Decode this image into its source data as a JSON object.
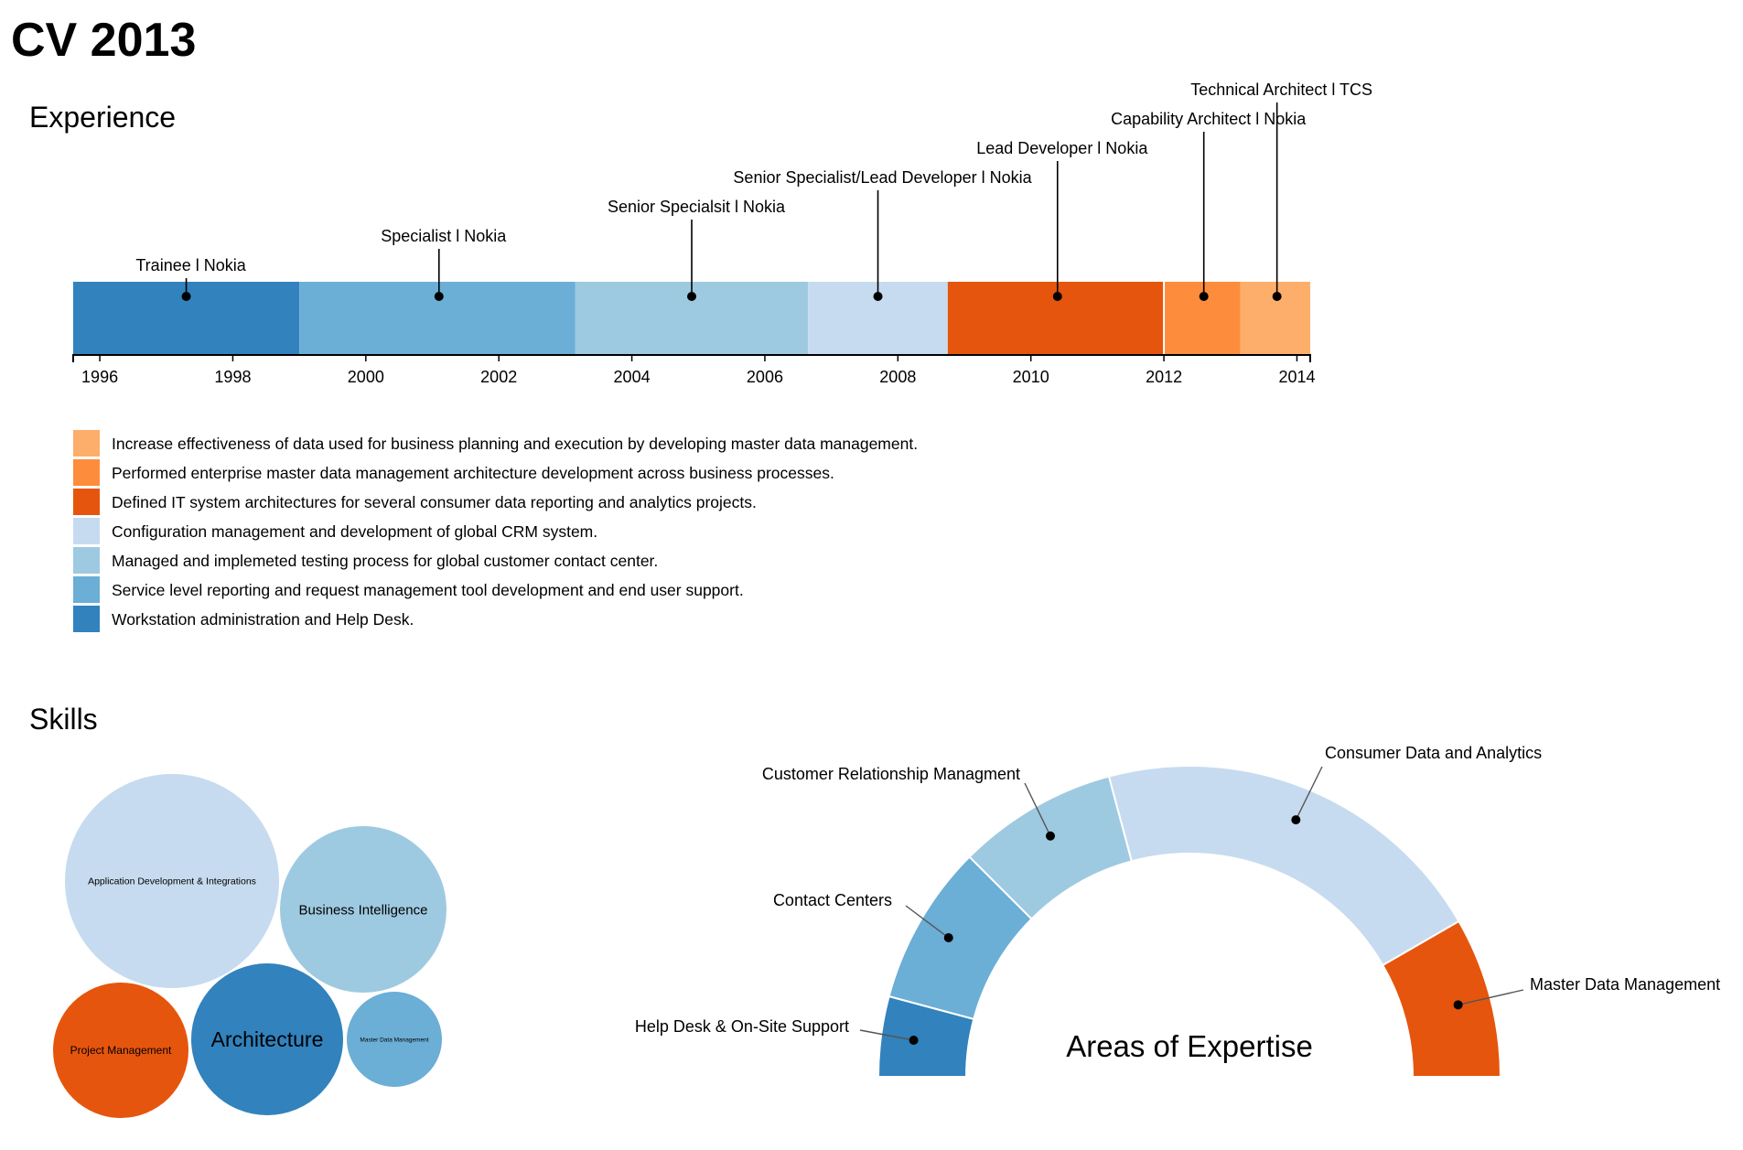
{
  "page": {
    "title": "CV 2013"
  },
  "sections": {
    "experience": "Experience",
    "skills": "Skills"
  },
  "chart_data": [
    {
      "type": "timeline",
      "x_ticks": [
        "1996",
        "1998",
        "2000",
        "2002",
        "2004",
        "2006",
        "2008",
        "2010",
        "2012",
        "2014"
      ],
      "xlim": [
        1995.6,
        2014.2
      ],
      "periods": [
        {
          "label": "Trainee l Nokia",
          "start": 1995.6,
          "end": 1999.0,
          "marker": 1997.3,
          "color": "#3182bd",
          "description": "Workstation administration and Help Desk."
        },
        {
          "label": "Specialist l Nokia",
          "start": 1999.0,
          "end": 2003.15,
          "marker": 2001.1,
          "color": "#6baed6",
          "description": "Service level reporting and request management tool development and end user support."
        },
        {
          "label": "Senior Specialsit l Nokia",
          "start": 2003.15,
          "end": 2006.65,
          "marker": 2004.9,
          "color": "#9ecae1",
          "description": "Managed and implemeted testing process for global customer contact center."
        },
        {
          "label": "Senior Specialist/Lead Developer l Nokia",
          "start": 2006.65,
          "end": 2008.75,
          "marker": 2007.7,
          "color": "#c6dbef",
          "description": "Configuration management and development of global CRM system."
        },
        {
          "label": "Lead Developer l Nokia",
          "start": 2008.75,
          "end": 2012.0,
          "marker": 2010.4,
          "color": "#e6550d",
          "description": "Defined IT system architectures for several consumer data reporting and analytics projects."
        },
        {
          "label": "Capability Architect l Nokia",
          "start": 2012.0,
          "end": 2013.15,
          "marker": 2012.6,
          "color": "#fd8d3c",
          "description": "Performed enterprise master data management architecture development across business processes."
        },
        {
          "label": "Technical Architect l TCS",
          "start": 2013.15,
          "end": 2014.2,
          "marker": 2013.7,
          "color": "#fdae6b",
          "description": "Increase effectiveness of data used for business planning and execution by developing master data management."
        }
      ]
    },
    {
      "type": "bubble",
      "items": [
        {
          "label": "Application Development & Integrations",
          "size": 100,
          "color": "#c6dbef"
        },
        {
          "label": "Business Intelligence",
          "size": 60,
          "color": "#9ecae1"
        },
        {
          "label": "Project Management",
          "size": 40,
          "color": "#e6550d"
        },
        {
          "label": "Architecture",
          "size": 50,
          "color": "#3182bd"
        },
        {
          "label": "Master Data Management",
          "size": 20,
          "color": "#6baed6"
        }
      ]
    },
    {
      "type": "pie",
      "title": "Areas of Expertise",
      "slices": [
        {
          "label": "Help Desk & On-Site Support",
          "value": 1,
          "color": "#3182bd"
        },
        {
          "label": "Contact Centers",
          "value": 2,
          "color": "#6baed6"
        },
        {
          "label": "Customer Relationship Managment",
          "value": 2,
          "color": "#9ecae1"
        },
        {
          "label": "Consumer Data and Analytics",
          "value": 5,
          "color": "#c6dbef"
        },
        {
          "label": "Master Data Management",
          "value": 2,
          "color": "#e6550d"
        }
      ]
    }
  ]
}
